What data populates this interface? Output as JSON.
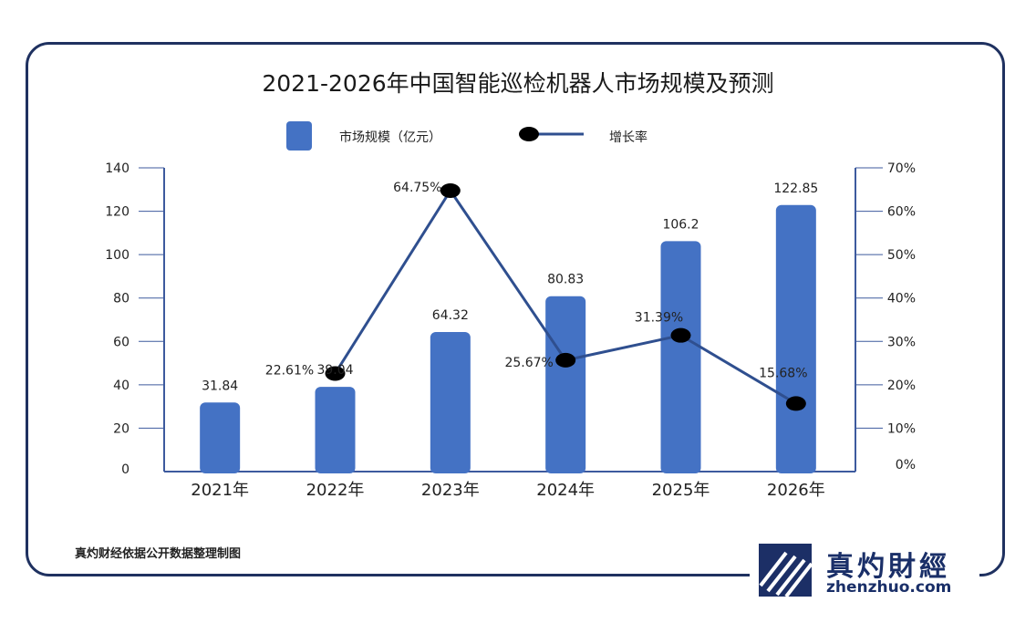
{
  "header": {
    "title": "2021-2026年中国智能巡检机器人市场规模及预测"
  },
  "legend": {
    "bar_label": "市场规模（亿元）",
    "line_label": "增长率"
  },
  "footer": {
    "source": "真灼财经依据公开数据整理制图"
  },
  "logo": {
    "name_cn": "真灼財經",
    "domain": "zhenzhuo.com"
  },
  "colors": {
    "bar": "#4472c4",
    "line": "#2f4f8f",
    "axis": "#3d5a9e",
    "border": "#1f3160",
    "marker": "#000000"
  },
  "chart_data": {
    "type": "bar",
    "title": "2021-2026年中国智能巡检机器人市场规模及预测",
    "categories": [
      "2021年",
      "2022年",
      "2023年",
      "2024年",
      "2025年",
      "2026年"
    ],
    "series": [
      {
        "name": "市场规模（亿元）",
        "type": "bar",
        "axis": "left",
        "values": [
          31.84,
          39.04,
          64.32,
          80.83,
          106.2,
          122.85
        ],
        "labels": [
          "31.84",
          "39.04",
          "64.32",
          "80.83",
          "106.2",
          "122.85"
        ]
      },
      {
        "name": "增长率",
        "type": "line",
        "axis": "right",
        "values": [
          null,
          22.61,
          64.75,
          25.67,
          31.39,
          15.68
        ],
        "labels": [
          null,
          "22.61%",
          "64.75%",
          "25.67%",
          "31.39%",
          "15.68%"
        ]
      }
    ],
    "left_axis": {
      "ylim": [
        0,
        140
      ],
      "ticks": [
        "0",
        "20",
        "40",
        "60",
        "80",
        "100",
        "120",
        "140"
      ]
    },
    "right_axis": {
      "ylim": [
        0,
        70
      ],
      "ticks": [
        "0%",
        "10%",
        "20%",
        "30%",
        "40%",
        "50%",
        "60%",
        "70%"
      ]
    },
    "legend_position": "top-center",
    "grid": false
  }
}
